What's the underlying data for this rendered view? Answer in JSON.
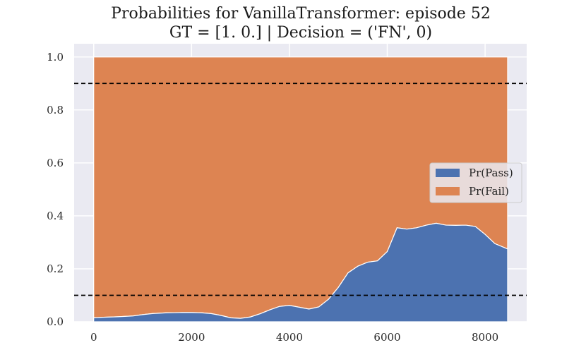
{
  "chart_data": {
    "type": "area",
    "title": "Probabilities for VanillaTransformer: episode 52",
    "subtitle": "GT = [1. 0.] | Decision = ('FN', 0)",
    "xlabel": "",
    "ylabel": "",
    "xlim": [
      -400,
      8850
    ],
    "ylim": [
      0,
      1.05
    ],
    "xticks": [
      0,
      2000,
      4000,
      6000,
      8000
    ],
    "yticks": [
      0.0,
      0.2,
      0.4,
      0.6,
      0.8,
      1.0
    ],
    "xtick_labels": [
      "0",
      "2000",
      "4000",
      "6000",
      "8000"
    ],
    "ytick_labels": [
      "0.0",
      "0.2",
      "0.4",
      "0.6",
      "0.8",
      "1.0"
    ],
    "stacked": true,
    "grid": true,
    "legend_position": "center-right",
    "thresholds": [
      0.9,
      0.1
    ],
    "x": [
      0,
      200,
      500,
      800,
      1000,
      1200,
      1500,
      1800,
      2000,
      2200,
      2400,
      2600,
      2800,
      3000,
      3200,
      3400,
      3600,
      3800,
      4000,
      4200,
      4400,
      4600,
      4800,
      5000,
      5200,
      5400,
      5600,
      5800,
      6000,
      6200,
      6400,
      6600,
      6800,
      7000,
      7200,
      7400,
      7600,
      7800,
      8000,
      8200,
      8460
    ],
    "series": [
      {
        "name": "Pr(Pass)",
        "color": "#4c72b0",
        "values": [
          0.015,
          0.017,
          0.019,
          0.022,
          0.027,
          0.031,
          0.034,
          0.035,
          0.035,
          0.034,
          0.031,
          0.024,
          0.015,
          0.013,
          0.018,
          0.03,
          0.045,
          0.058,
          0.062,
          0.055,
          0.048,
          0.056,
          0.085,
          0.13,
          0.185,
          0.21,
          0.225,
          0.23,
          0.265,
          0.355,
          0.35,
          0.355,
          0.365,
          0.372,
          0.365,
          0.364,
          0.365,
          0.36,
          0.33,
          0.295,
          0.275
        ]
      },
      {
        "name": "Pr(Fail)",
        "color": "#dd8452",
        "values": [
          0.985,
          0.983,
          0.981,
          0.978,
          0.973,
          0.969,
          0.966,
          0.965,
          0.965,
          0.966,
          0.969,
          0.976,
          0.985,
          0.987,
          0.982,
          0.97,
          0.955,
          0.942,
          0.938,
          0.945,
          0.952,
          0.944,
          0.915,
          0.87,
          0.815,
          0.79,
          0.775,
          0.77,
          0.735,
          0.645,
          0.65,
          0.645,
          0.635,
          0.628,
          0.635,
          0.636,
          0.635,
          0.64,
          0.67,
          0.705,
          0.725
        ]
      }
    ]
  }
}
